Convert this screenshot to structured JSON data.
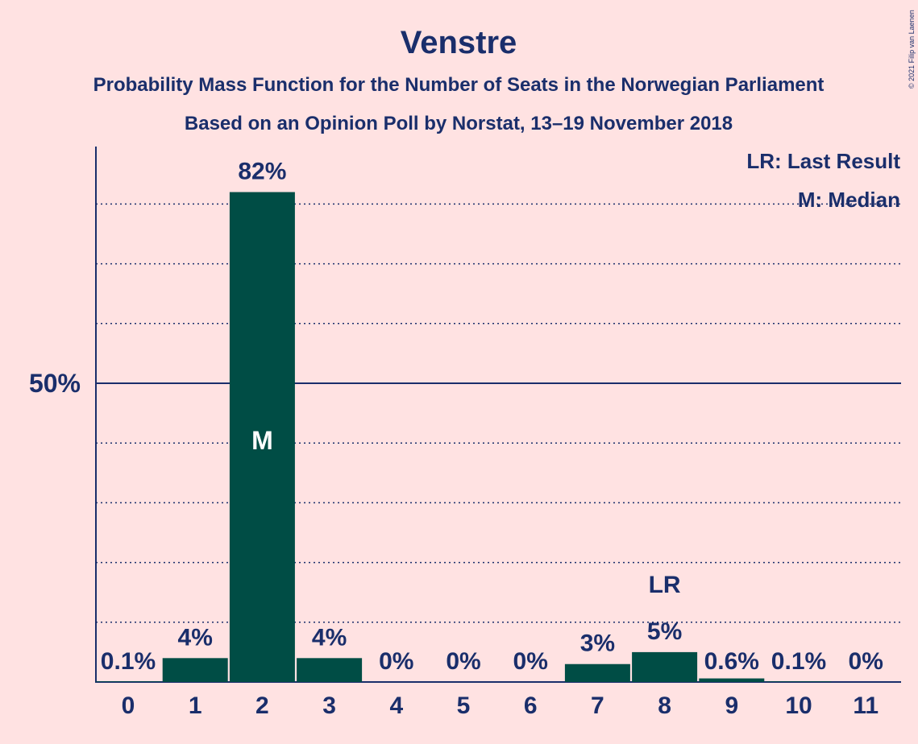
{
  "chart_data": {
    "type": "bar",
    "title": "Venstre",
    "subtitle": "Probability Mass Function for the Number of Seats in the Norwegian Parliament",
    "subtitle2": "Based on an Opinion Poll by Norstat, 13–19 November 2018",
    "xlabel": "",
    "ylabel": "",
    "categories": [
      "0",
      "1",
      "2",
      "3",
      "4",
      "5",
      "6",
      "7",
      "8",
      "9",
      "10",
      "11"
    ],
    "values": [
      0.1,
      4,
      82,
      4,
      0,
      0,
      0,
      3,
      5,
      0.6,
      0.1,
      0
    ],
    "value_labels": [
      "0.1%",
      "4%",
      "82%",
      "4%",
      "0%",
      "0%",
      "0%",
      "3%",
      "5%",
      "0.6%",
      "0.1%",
      "0%"
    ],
    "ylim": [
      0,
      90
    ],
    "y_ticks": [
      {
        "value": 50,
        "label": "50%"
      }
    ],
    "gridlines": [
      10,
      20,
      30,
      40,
      60,
      70,
      80
    ],
    "median_index": 2,
    "median_label": "M",
    "last_result_index": 8,
    "last_result_label": "LR",
    "legend": [
      "LR: Last Result",
      "M: Median"
    ],
    "legend_position": "top-right",
    "copyright": "© 2021 Filip van Laenen",
    "colors": {
      "background": "#ffe2e2",
      "bar": "#004d45",
      "text": "#1a2e6b"
    }
  }
}
